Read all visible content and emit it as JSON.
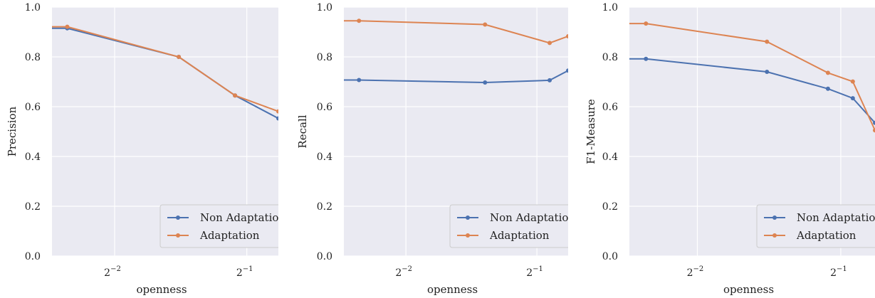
{
  "colors": {
    "plot_background": "#eaeaf2",
    "grid": "#ffffff",
    "non_adaptation": "#4c72b0",
    "adaptation": "#dd8452"
  },
  "chart_data": [
    {
      "type": "line",
      "xlabel": "openness",
      "ylabel": "Precision",
      "x_scale": "log2",
      "xlim": [
        0.18,
        0.59
      ],
      "ylim": [
        0.0,
        1.0
      ],
      "x_ticks": [
        {
          "value": 0.25,
          "base": "2",
          "exp": "−2"
        },
        {
          "value": 0.5,
          "base": "2",
          "exp": "−1"
        }
      ],
      "y_ticks": [
        "0.0",
        "0.2",
        "0.4",
        "0.6",
        "0.8",
        "1.0"
      ],
      "y_tick_values": [
        0.0,
        0.2,
        0.4,
        0.6,
        0.8,
        1.0
      ],
      "grid": true,
      "legend_position": "lower-right",
      "series": [
        {
          "name": "Non Adaptation",
          "x": [
            0.18,
            0.195,
            0.35,
            0.47,
            0.59
          ],
          "y": [
            0.915,
            0.915,
            0.8,
            0.645,
            0.553
          ]
        },
        {
          "name": "Adaptation",
          "x": [
            0.18,
            0.195,
            0.35,
            0.47,
            0.59
          ],
          "y": [
            0.921,
            0.921,
            0.8,
            0.645,
            0.581
          ]
        }
      ]
    },
    {
      "type": "line",
      "xlabel": "openness",
      "ylabel": "Recall",
      "x_scale": "log2",
      "xlim": [
        0.18,
        0.59
      ],
      "ylim": [
        0.0,
        1.0
      ],
      "x_ticks": [
        {
          "value": 0.25,
          "base": "2",
          "exp": "−2"
        },
        {
          "value": 0.5,
          "base": "2",
          "exp": "−1"
        }
      ],
      "y_ticks": [
        "0.0",
        "0.2",
        "0.4",
        "0.6",
        "0.8",
        "1.0"
      ],
      "y_tick_values": [
        0.0,
        0.2,
        0.4,
        0.6,
        0.8,
        1.0
      ],
      "grid": true,
      "legend_position": "lower-right",
      "series": [
        {
          "name": "Non Adaptation",
          "x": [
            0.18,
            0.195,
            0.38,
            0.535,
            0.59
          ],
          "y": [
            0.707,
            0.707,
            0.697,
            0.706,
            0.745
          ]
        },
        {
          "name": "Adaptation",
          "x": [
            0.18,
            0.195,
            0.38,
            0.535,
            0.59
          ],
          "y": [
            0.945,
            0.945,
            0.93,
            0.856,
            0.883
          ]
        }
      ]
    },
    {
      "type": "line",
      "xlabel": "openness",
      "ylabel": "F1-Measure",
      "x_scale": "log2",
      "xlim": [
        0.18,
        0.59
      ],
      "ylim": [
        0.0,
        1.0
      ],
      "x_ticks": [
        {
          "value": 0.25,
          "base": "2",
          "exp": "−2"
        },
        {
          "value": 0.5,
          "base": "2",
          "exp": "−1"
        }
      ],
      "y_ticks": [
        "0.0",
        "0.2",
        "0.4",
        "0.6",
        "0.8",
        "1.0"
      ],
      "y_tick_values": [
        0.0,
        0.2,
        0.4,
        0.6,
        0.8,
        1.0
      ],
      "grid": true,
      "legend_position": "lower-right",
      "series": [
        {
          "name": "Non Adaptation",
          "x": [
            0.18,
            0.195,
            0.35,
            0.47,
            0.53,
            0.59
          ],
          "y": [
            0.792,
            0.792,
            0.74,
            0.672,
            0.634,
            0.535
          ]
        },
        {
          "name": "Adaptation",
          "x": [
            0.18,
            0.195,
            0.35,
            0.47,
            0.53,
            0.59
          ],
          "y": [
            0.934,
            0.934,
            0.861,
            0.736,
            0.701,
            0.505
          ]
        }
      ]
    }
  ]
}
